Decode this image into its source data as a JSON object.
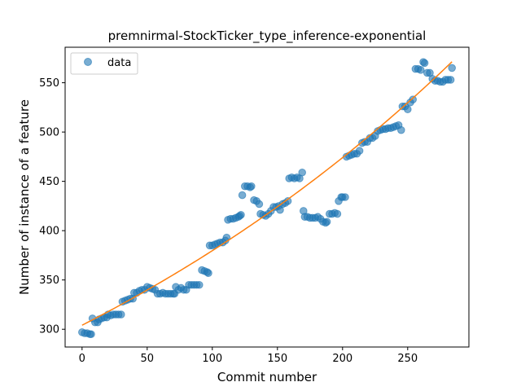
{
  "chart_data": {
    "type": "scatter",
    "title": "premnirmal-StockTicker_type_inference-exponential",
    "xlabel": "Commit number",
    "ylabel": "Number of instance of a feature",
    "xlim": [
      -13,
      297
    ],
    "ylim": [
      282,
      586
    ],
    "x_ticks": [
      0,
      50,
      100,
      150,
      200,
      250
    ],
    "y_ticks": [
      300,
      350,
      400,
      450,
      500,
      550
    ],
    "legend": {
      "position": "top-left",
      "entries": [
        "data"
      ]
    },
    "colors": {
      "data": "#1f77b4",
      "fit": "#ff7f0e"
    },
    "series": [
      {
        "name": "data",
        "style": "markers",
        "points": [
          [
            0,
            297
          ],
          [
            2,
            296
          ],
          [
            4,
            296
          ],
          [
            6,
            295
          ],
          [
            7,
            295
          ],
          [
            8,
            311
          ],
          [
            10,
            307
          ],
          [
            12,
            307
          ],
          [
            13,
            310
          ],
          [
            15,
            311
          ],
          [
            17,
            312
          ],
          [
            19,
            312
          ],
          [
            20,
            315
          ],
          [
            22,
            314
          ],
          [
            24,
            315
          ],
          [
            26,
            315
          ],
          [
            28,
            315
          ],
          [
            30,
            315
          ],
          [
            31,
            328
          ],
          [
            33,
            329
          ],
          [
            35,
            330
          ],
          [
            37,
            331
          ],
          [
            39,
            331
          ],
          [
            40,
            337
          ],
          [
            42,
            337
          ],
          [
            44,
            339
          ],
          [
            46,
            340
          ],
          [
            48,
            340
          ],
          [
            50,
            343
          ],
          [
            52,
            342
          ],
          [
            54,
            341
          ],
          [
            56,
            340
          ],
          [
            58,
            336
          ],
          [
            60,
            336
          ],
          [
            62,
            337
          ],
          [
            64,
            336
          ],
          [
            66,
            336
          ],
          [
            68,
            336
          ],
          [
            70,
            336
          ],
          [
            71,
            336
          ],
          [
            72,
            343
          ],
          [
            74,
            340
          ],
          [
            76,
            342
          ],
          [
            78,
            340
          ],
          [
            80,
            340
          ],
          [
            82,
            345
          ],
          [
            84,
            345
          ],
          [
            86,
            345
          ],
          [
            88,
            345
          ],
          [
            90,
            345
          ],
          [
            92,
            360
          ],
          [
            94,
            359
          ],
          [
            96,
            358
          ],
          [
            97,
            357
          ],
          [
            98,
            385
          ],
          [
            100,
            385
          ],
          [
            102,
            386
          ],
          [
            104,
            387
          ],
          [
            106,
            388
          ],
          [
            108,
            388
          ],
          [
            110,
            390
          ],
          [
            111,
            393
          ],
          [
            112,
            411
          ],
          [
            114,
            412
          ],
          [
            116,
            412
          ],
          [
            118,
            413
          ],
          [
            120,
            414
          ],
          [
            121,
            415
          ],
          [
            122,
            416
          ],
          [
            123,
            436
          ],
          [
            125,
            445
          ],
          [
            127,
            445
          ],
          [
            129,
            444
          ],
          [
            130,
            445
          ],
          [
            132,
            431
          ],
          [
            134,
            430
          ],
          [
            136,
            427
          ],
          [
            137,
            417
          ],
          [
            139,
            416
          ],
          [
            141,
            415
          ],
          [
            143,
            417
          ],
          [
            145,
            420
          ],
          [
            147,
            424
          ],
          [
            149,
            424
          ],
          [
            151,
            425
          ],
          [
            152,
            421
          ],
          [
            154,
            427
          ],
          [
            156,
            428
          ],
          [
            158,
            430
          ],
          [
            159,
            453
          ],
          [
            161,
            454
          ],
          [
            163,
            453
          ],
          [
            165,
            454
          ],
          [
            167,
            453
          ],
          [
            169,
            459
          ],
          [
            170,
            420
          ],
          [
            171,
            414
          ],
          [
            173,
            414
          ],
          [
            175,
            413
          ],
          [
            177,
            413
          ],
          [
            179,
            413
          ],
          [
            181,
            414
          ],
          [
            183,
            412
          ],
          [
            185,
            409
          ],
          [
            187,
            408
          ],
          [
            188,
            409
          ],
          [
            190,
            417
          ],
          [
            192,
            417
          ],
          [
            194,
            418
          ],
          [
            196,
            417
          ],
          [
            197,
            430
          ],
          [
            199,
            434
          ],
          [
            200,
            434
          ],
          [
            202,
            434
          ],
          [
            203,
            475
          ],
          [
            205,
            476
          ],
          [
            207,
            477
          ],
          [
            209,
            478
          ],
          [
            211,
            478
          ],
          [
            213,
            481
          ],
          [
            215,
            489
          ],
          [
            217,
            490
          ],
          [
            219,
            490
          ],
          [
            221,
            494
          ],
          [
            223,
            494
          ],
          [
            225,
            496
          ],
          [
            227,
            501
          ],
          [
            229,
            502
          ],
          [
            231,
            503
          ],
          [
            233,
            503
          ],
          [
            235,
            504
          ],
          [
            237,
            504
          ],
          [
            239,
            505
          ],
          [
            241,
            506
          ],
          [
            243,
            507
          ],
          [
            245,
            502
          ],
          [
            246,
            526
          ],
          [
            248,
            526
          ],
          [
            250,
            523
          ],
          [
            252,
            530
          ],
          [
            254,
            533
          ],
          [
            256,
            564
          ],
          [
            258,
            564
          ],
          [
            260,
            563
          ],
          [
            262,
            571
          ],
          [
            263,
            570
          ],
          [
            265,
            560
          ],
          [
            267,
            560
          ],
          [
            269,
            554
          ],
          [
            271,
            552
          ],
          [
            273,
            552
          ],
          [
            275,
            551
          ],
          [
            277,
            551
          ],
          [
            279,
            553
          ],
          [
            281,
            553
          ],
          [
            283,
            553
          ],
          [
            284,
            565
          ]
        ]
      },
      {
        "name": "",
        "style": "line",
        "fit": {
          "model": "exponential",
          "a": 304.1,
          "b": 0.00222
        },
        "x_range": [
          0,
          284
        ]
      }
    ]
  }
}
